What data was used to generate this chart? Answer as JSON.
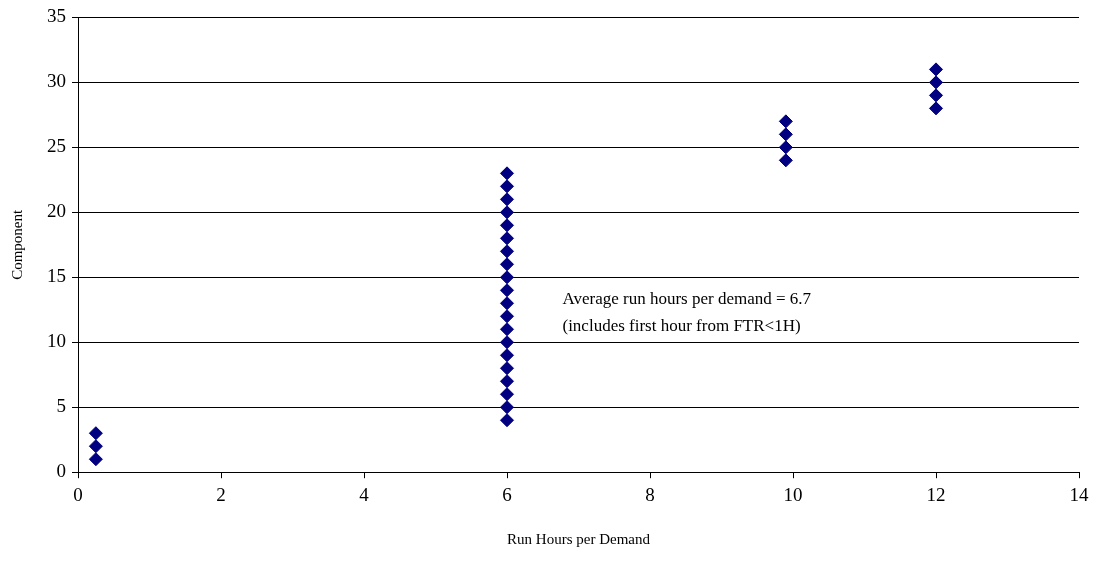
{
  "chart_data": {
    "type": "scatter",
    "xlabel": "Run Hours per Demand",
    "ylabel": "Component",
    "annotations": [
      "Average run hours per demand = 6.7",
      "(includes first hour from FTR<1H)"
    ],
    "series": [
      {
        "color": "#000080",
        "x": [
          0.25,
          0.25,
          0.25,
          6,
          6,
          6,
          6,
          6,
          6,
          6,
          6,
          6,
          6,
          6,
          6,
          6,
          6,
          6,
          6,
          6,
          6,
          6,
          6,
          9.9,
          9.9,
          9.9,
          9.9,
          12,
          12,
          12,
          12
        ],
        "values": [
          1,
          2,
          3,
          4,
          5,
          6,
          7,
          8,
          9,
          10,
          11,
          12,
          13,
          14,
          15,
          16,
          17,
          18,
          19,
          20,
          21,
          22,
          23,
          24,
          25,
          26,
          27,
          28,
          29,
          30,
          31
        ]
      }
    ],
    "xlim": [
      0,
      14
    ],
    "xticks": [
      0,
      2,
      4,
      6,
      8,
      10,
      12,
      14
    ],
    "ylim": [
      0,
      35
    ],
    "yticks": [
      0,
      5,
      10,
      15,
      20,
      25,
      30,
      35
    ],
    "grid": "y",
    "legend": false,
    "marker": "diamond"
  }
}
